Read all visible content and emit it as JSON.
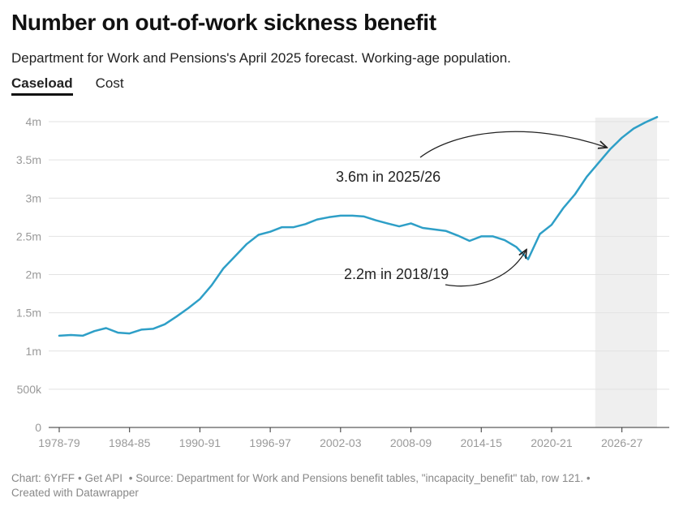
{
  "header": {
    "title": "Number on out-of-work sickness benefit",
    "subtitle": "Department for Work and Pensions's April 2025 forecast. Working-age population."
  },
  "tabs": [
    {
      "label": "Caseload",
      "active": true
    },
    {
      "label": "Cost",
      "active": false
    }
  ],
  "footer": {
    "chart_id": "Chart: 6YrFF",
    "api": "• Get API",
    "source": " • Source: Department for Work and Pensions benefit tables, \"incapacity_benefit\" tab, row 121. •",
    "credit": "Created with Datawrapper"
  },
  "colors": {
    "line": "#2e9fc7",
    "forecast_shade": "#efefef",
    "grid": "#e2e2e2",
    "axis": "#333333"
  },
  "chart_data": {
    "type": "line",
    "title": "Number on out-of-work sickness benefit",
    "xlabel": "",
    "ylabel": "",
    "ylim": [
      0,
      4000000
    ],
    "y_ticks": [
      {
        "value": 0,
        "label": "0"
      },
      {
        "value": 500000,
        "label": "500k"
      },
      {
        "value": 1000000,
        "label": "1m"
      },
      {
        "value": 1500000,
        "label": "1.5m"
      },
      {
        "value": 2000000,
        "label": "2m"
      },
      {
        "value": 2500000,
        "label": "2.5m"
      },
      {
        "value": 3000000,
        "label": "3m"
      },
      {
        "value": 3500000,
        "label": "3.5m"
      },
      {
        "value": 4000000,
        "label": "4m"
      }
    ],
    "x_tick_labels": [
      "1978-79",
      "1984-85",
      "1990-91",
      "1996-97",
      "2002-03",
      "2008-09",
      "2014-15",
      "2020-21",
      "2026-27"
    ],
    "forecast_start_index": 46,
    "series": [
      {
        "name": "Caseload",
        "years": [
          "1978-79",
          "1979-80",
          "1980-81",
          "1981-82",
          "1982-83",
          "1983-84",
          "1984-85",
          "1985-86",
          "1986-87",
          "1987-88",
          "1988-89",
          "1989-90",
          "1990-91",
          "1991-92",
          "1992-93",
          "1993-94",
          "1994-95",
          "1995-96",
          "1996-97",
          "1997-98",
          "1998-99",
          "1999-00",
          "2000-01",
          "2001-02",
          "2002-03",
          "2003-04",
          "2004-05",
          "2005-06",
          "2006-07",
          "2007-08",
          "2008-09",
          "2009-10",
          "2010-11",
          "2011-12",
          "2012-13",
          "2013-14",
          "2014-15",
          "2015-16",
          "2016-17",
          "2017-18",
          "2018-19",
          "2019-20",
          "2020-21",
          "2021-22",
          "2022-23",
          "2023-24",
          "2024-25",
          "2025-26",
          "2026-27",
          "2027-28",
          "2028-29",
          "2029-30"
        ],
        "values": [
          1200000,
          1210000,
          1200000,
          1260000,
          1300000,
          1240000,
          1230000,
          1280000,
          1290000,
          1350000,
          1450000,
          1560000,
          1680000,
          1860000,
          2080000,
          2240000,
          2400000,
          2520000,
          2560000,
          2620000,
          2620000,
          2660000,
          2720000,
          2750000,
          2770000,
          2770000,
          2760000,
          2710000,
          2670000,
          2630000,
          2670000,
          2610000,
          2590000,
          2570000,
          2510000,
          2440000,
          2500000,
          2500000,
          2450000,
          2360000,
          2200000,
          2530000,
          2650000,
          2870000,
          3050000,
          3280000,
          3460000,
          3640000,
          3790000,
          3910000,
          3990000,
          4060000
        ]
      }
    ],
    "annotations": [
      {
        "text": "3.6m in 2025/26",
        "target_year": "2025-26"
      },
      {
        "text": "2.2m  in 2018/19",
        "target_year": "2018-19"
      }
    ]
  }
}
